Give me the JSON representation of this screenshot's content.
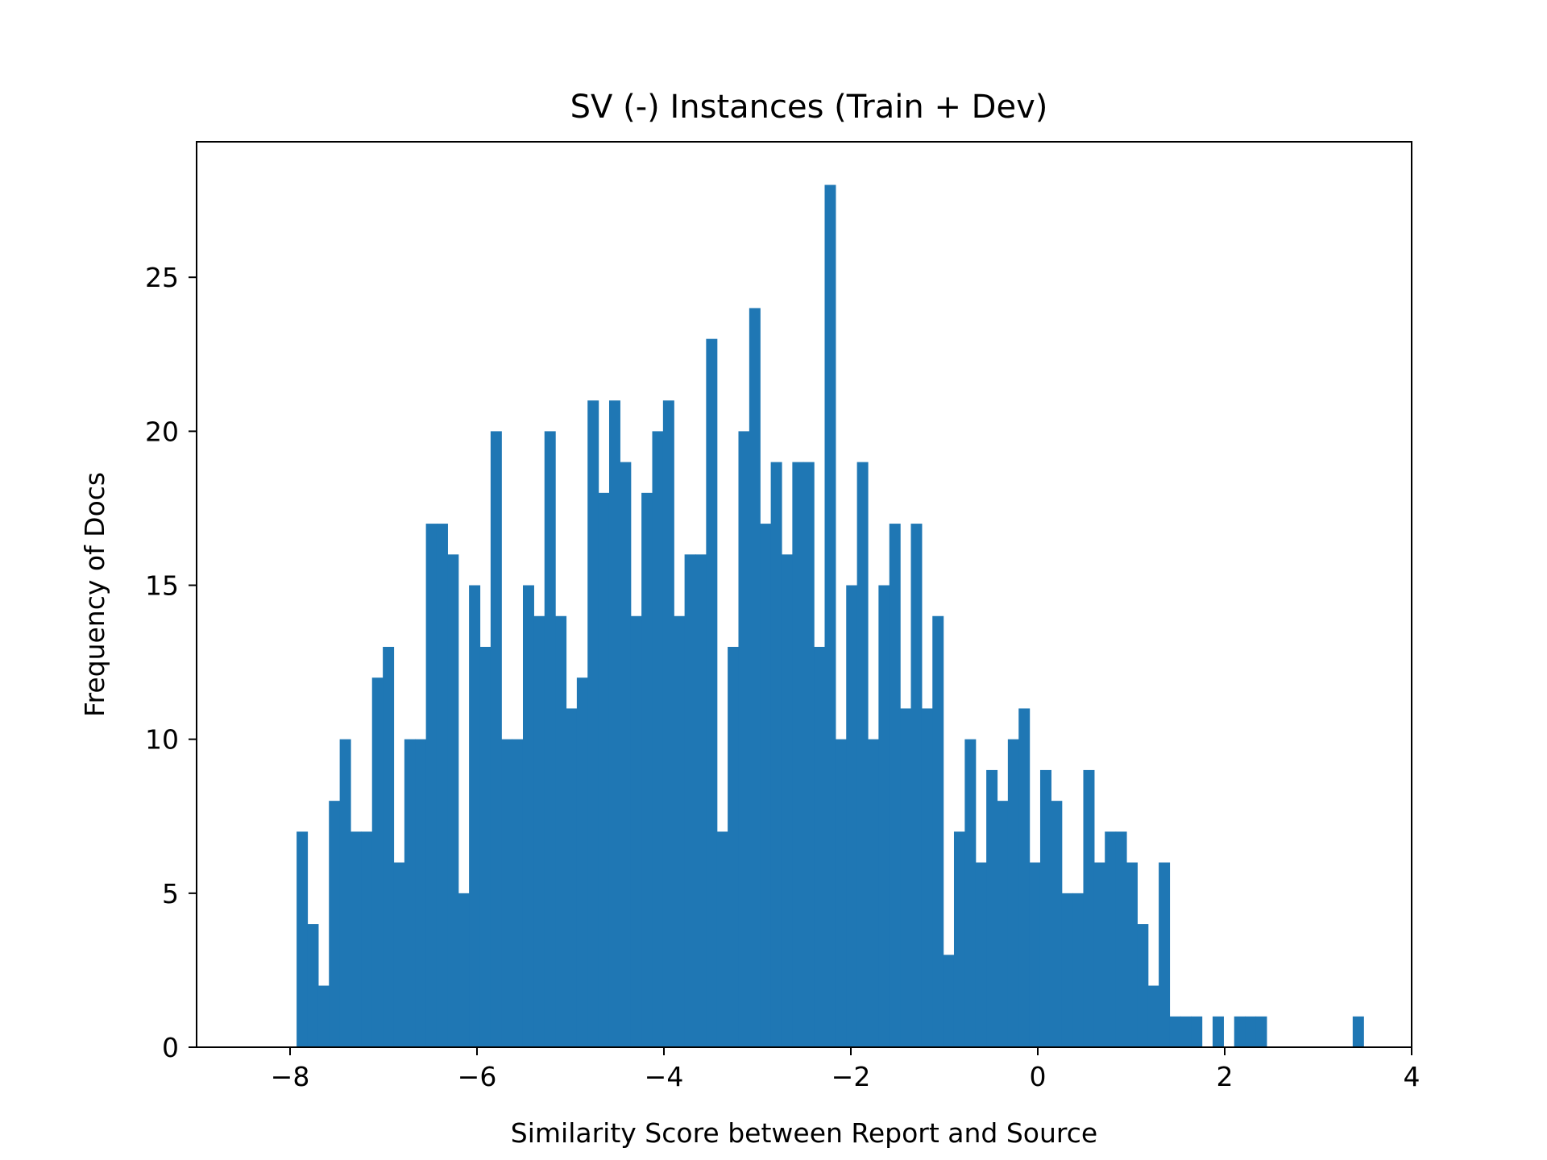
{
  "chart_data": {
    "type": "bar",
    "title": "SV (-) Instances (Train + Dev)",
    "xlabel": "Similarity Score between Report and Source",
    "ylabel": "Frequency of Docs",
    "xlim": [
      -9.0,
      4.0
    ],
    "ylim": [
      0,
      29.4
    ],
    "xticks": [
      {
        "value": -8,
        "label": "−8"
      },
      {
        "value": -6,
        "label": "−6"
      },
      {
        "value": -4,
        "label": "−4"
      },
      {
        "value": -2,
        "label": "−2"
      },
      {
        "value": 0,
        "label": "0"
      },
      {
        "value": 2,
        "label": "2"
      },
      {
        "value": 4,
        "label": "4"
      }
    ],
    "yticks": [
      {
        "value": 0,
        "label": "0"
      },
      {
        "value": 5,
        "label": "5"
      },
      {
        "value": 10,
        "label": "10"
      },
      {
        "value": 15,
        "label": "15"
      },
      {
        "value": 20,
        "label": "20"
      },
      {
        "value": 25,
        "label": "25"
      }
    ],
    "grid": false,
    "bar_color": "#1f77b4",
    "bin_start": -7.93,
    "bin_width": 0.1153,
    "values": [
      7,
      4,
      2,
      8,
      10,
      7,
      7,
      12,
      13,
      6,
      10,
      10,
      17,
      17,
      16,
      5,
      15,
      13,
      20,
      10,
      10,
      15,
      14,
      20,
      14,
      11,
      12,
      21,
      18,
      21,
      19,
      14,
      18,
      20,
      21,
      14,
      16,
      16,
      23,
      7,
      13,
      20,
      24,
      17,
      19,
      16,
      19,
      19,
      13,
      28,
      10,
      15,
      19,
      10,
      15,
      17,
      11,
      17,
      11,
      14,
      3,
      7,
      10,
      6,
      9,
      8,
      10,
      11,
      6,
      9,
      8,
      5,
      5,
      9,
      6,
      7,
      7,
      6,
      4,
      2,
      6,
      1,
      1,
      1,
      0,
      1,
      0,
      1,
      1,
      1,
      0,
      0,
      0,
      0,
      0,
      0,
      0,
      0,
      1
    ]
  }
}
